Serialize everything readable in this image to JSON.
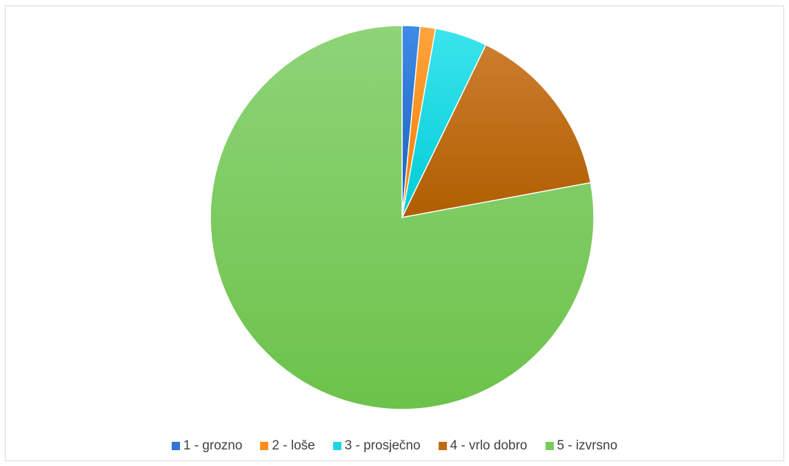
{
  "chart_data": {
    "type": "pie",
    "title": "",
    "legend_position": "bottom",
    "start_angle": "top, clockwise",
    "slices": [
      {
        "label": "1 - grozno",
        "value": 1.5,
        "color": "#2e75d6",
        "grad": [
          "#3f8be8",
          "#1e5fb8"
        ]
      },
      {
        "label": "2 - loše",
        "value": 1.3,
        "color": "#ff8c1a",
        "grad": [
          "#ffa43d",
          "#f57c00"
        ]
      },
      {
        "label": "3 - prosječno",
        "value": 4.4,
        "color": "#1fd6e0",
        "grad": [
          "#3be4ec",
          "#00cbd6"
        ]
      },
      {
        "label": "4 - vrlo dobro",
        "value": 14.9,
        "color": "#c06a10",
        "grad": [
          "#cc7d2e",
          "#b05e00"
        ]
      },
      {
        "label": "5 - izvrsno",
        "value": 77.9,
        "color": "#79cc5c",
        "grad": [
          "#8ed478",
          "#6cc24a"
        ]
      }
    ]
  }
}
